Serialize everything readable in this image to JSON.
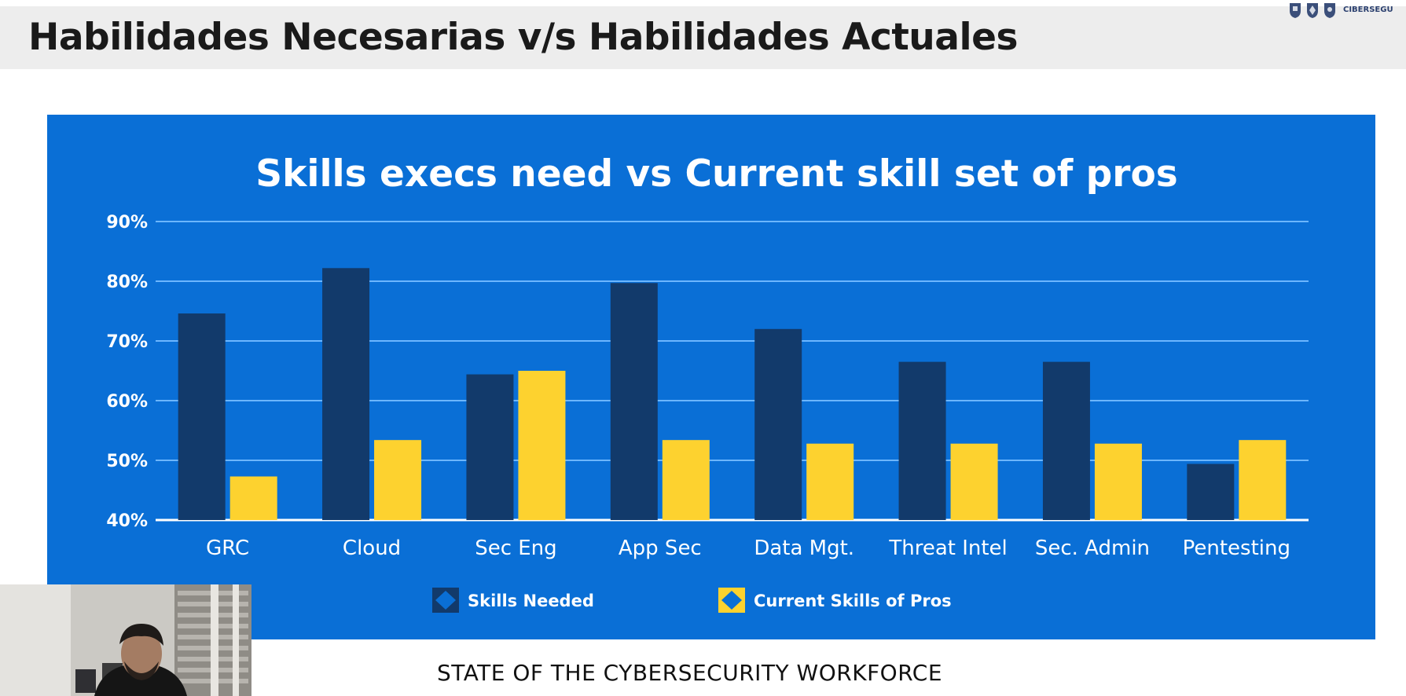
{
  "slide": {
    "title": "Habilidades Necesarias v/s Habilidades Actuales",
    "footer": "STATE OF THE CYBERSECURITY WORKFORCE",
    "logo_text": "CIBERSEGU"
  },
  "colors": {
    "panel_bg": "#0a6fd6",
    "skills_needed": "#123a6b",
    "current_skills": "#fdd22f",
    "gridline": "#6cb6ff"
  },
  "chart_data": {
    "type": "bar",
    "title": "Skills execs need vs Current skill set of pros",
    "xlabel": "",
    "ylabel": "",
    "ylim": [
      40,
      90
    ],
    "yticks": [
      40,
      50,
      60,
      70,
      80,
      90
    ],
    "ytick_labels": [
      "40%",
      "50%",
      "60%",
      "70%",
      "80%",
      "90%"
    ],
    "grid": true,
    "legend_position": "bottom",
    "categories": [
      "GRC",
      "Cloud",
      "Sec Eng",
      "App Sec",
      "Data Mgt.",
      "Threat Intel",
      "Sec. Admin",
      "Pentesting"
    ],
    "series": [
      {
        "name": "Skills Needed",
        "values": [
          74.6,
          82.2,
          64.4,
          79.7,
          72.0,
          66.5,
          66.5,
          49.4
        ]
      },
      {
        "name": "Current Skills of Pros",
        "values": [
          47.3,
          53.4,
          65.0,
          53.4,
          52.8,
          52.8,
          52.8,
          53.4
        ]
      }
    ]
  }
}
